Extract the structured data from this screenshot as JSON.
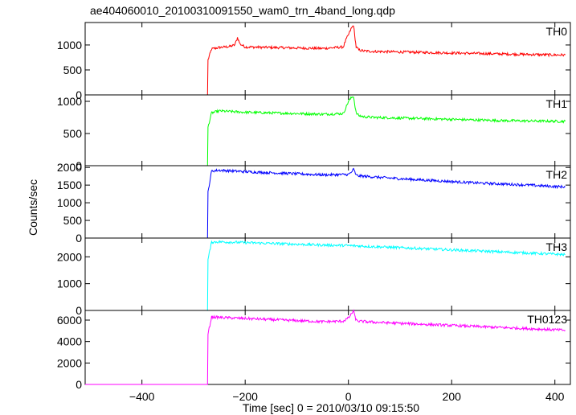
{
  "chart_data": [
    {
      "type": "line",
      "title": "ae404060010_20100310091550_wam0_trn_4band_long.qdp",
      "ylabel": "Counts/sec",
      "xlabel": "Time [sec] 0 = 2010/03/10 09:15:50",
      "xlim": [
        -510,
        430
      ],
      "xticks": [
        -400,
        -200,
        0,
        200,
        400
      ],
      "xticklabels": [
        "−400",
        "−200",
        "0",
        "200",
        "400"
      ],
      "panels": [
        {
          "name": "TH0",
          "color": "#ff0000",
          "ylim": [
            0,
            1450
          ],
          "yticks": [
            0,
            500,
            1000
          ],
          "yticklabels": [
            "0",
            "500",
            "1000"
          ],
          "series": [
            {
              "name": "TH0",
              "x": [
                -510,
                -273,
                -272,
                -265,
                -250,
                -230,
                -220,
                -215,
                -210,
                -200,
                -150,
                -100,
                -50,
                -10,
                -5,
                0,
                5,
                10,
                12,
                15,
                20,
                30,
                50,
                100,
                150,
                200,
                250,
                300,
                350,
                400,
                420
              ],
              "y": [
                0,
                0,
                700,
                920,
                950,
                970,
                1000,
                1150,
                1020,
                960,
                950,
                940,
                930,
                960,
                1100,
                1200,
                1320,
                1400,
                1200,
                960,
                900,
                880,
                870,
                860,
                850,
                840,
                830,
                820,
                810,
                800,
                800
              ]
            }
          ]
        },
        {
          "name": "TH1",
          "color": "#00ff00",
          "ylim": [
            0,
            1100
          ],
          "yticks": [
            0,
            500,
            1000
          ],
          "yticklabels": [
            "0",
            "500",
            "1000"
          ],
          "series": [
            {
              "name": "TH1",
              "x": [
                -510,
                -273,
                -272,
                -265,
                -250,
                -200,
                -150,
                -100,
                -50,
                -10,
                -5,
                0,
                5,
                10,
                12,
                15,
                20,
                30,
                50,
                100,
                150,
                200,
                250,
                300,
                350,
                400,
                420
              ],
              "y": [
                0,
                0,
                600,
                820,
                850,
                830,
                820,
                810,
                800,
                810,
                900,
                1000,
                1050,
                1080,
                960,
                820,
                780,
                760,
                750,
                740,
                730,
                720,
                710,
                700,
                695,
                690,
                690
              ]
            }
          ]
        },
        {
          "name": "TH2",
          "color": "#0000ff",
          "ylim": [
            0,
            2050
          ],
          "yticks": [
            0,
            500,
            1000,
            1500,
            2000
          ],
          "yticklabels": [
            "0",
            "500",
            "1000",
            "1500",
            "2000"
          ],
          "series": [
            {
              "name": "TH2",
              "x": [
                -510,
                -273,
                -272,
                -265,
                -250,
                -200,
                -150,
                -100,
                -50,
                0,
                5,
                10,
                15,
                20,
                50,
                100,
                150,
                200,
                250,
                300,
                350,
                400,
                420
              ],
              "y": [
                0,
                0,
                1300,
                1900,
                1920,
                1880,
                1850,
                1820,
                1790,
                1800,
                1850,
                1950,
                1780,
                1760,
                1730,
                1680,
                1640,
                1600,
                1560,
                1530,
                1500,
                1460,
                1450
              ]
            }
          ]
        },
        {
          "name": "TH3",
          "color": "#00ffff",
          "ylim": [
            0,
            2700
          ],
          "yticks": [
            0,
            1000,
            2000
          ],
          "yticklabels": [
            "0",
            "1000",
            "2000"
          ],
          "series": [
            {
              "name": "TH3",
              "x": [
                -510,
                -273,
                -272,
                -265,
                -250,
                -200,
                -150,
                -100,
                -50,
                0,
                50,
                100,
                150,
                200,
                250,
                300,
                350,
                400,
                420
              ],
              "y": [
                0,
                0,
                1900,
                2550,
                2560,
                2530,
                2500,
                2470,
                2440,
                2420,
                2380,
                2340,
                2300,
                2260,
                2220,
                2180,
                2140,
                2100,
                2080
              ]
            }
          ]
        },
        {
          "name": "TH0123",
          "color": "#ff00ff",
          "ylim": [
            0,
            6900
          ],
          "yticks": [
            0,
            2000,
            4000,
            6000
          ],
          "yticklabels": [
            "0",
            "2000",
            "4000",
            "6000"
          ],
          "series": [
            {
              "name": "TH0123",
              "x": [
                -510,
                -273,
                -272,
                -265,
                -250,
                -200,
                -150,
                -100,
                -50,
                -10,
                0,
                5,
                10,
                12,
                15,
                20,
                50,
                100,
                150,
                200,
                250,
                300,
                350,
                400,
                420
              ],
              "y": [
                0,
                0,
                4700,
                6300,
                6250,
                6150,
                6050,
                5950,
                5850,
                5900,
                6200,
                6500,
                6900,
                6400,
                6000,
                5900,
                5800,
                5700,
                5600,
                5500,
                5400,
                5300,
                5200,
                5100,
                5050
              ]
            }
          ]
        }
      ]
    }
  ]
}
